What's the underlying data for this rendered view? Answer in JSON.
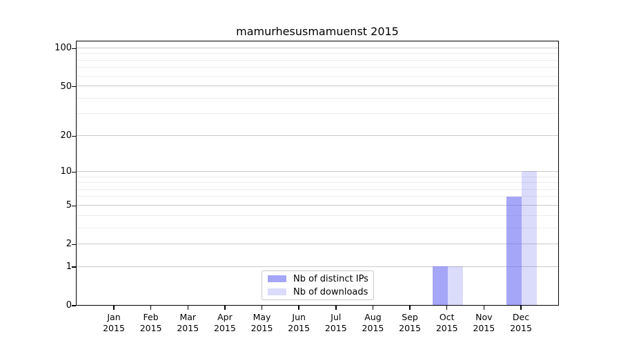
{
  "chart_data": {
    "type": "bar",
    "title": "mamurhesusmamuenst 2015",
    "categories": [
      "Jan",
      "Feb",
      "Mar",
      "Apr",
      "May",
      "Jun",
      "Jul",
      "Aug",
      "Sep",
      "Oct",
      "Nov",
      "Dec"
    ],
    "x_sublabel": "2015",
    "series": [
      {
        "name": "Nb of distinct IPs",
        "color": "rgba(92,92,242,0.55)",
        "values": [
          0,
          0,
          0,
          0,
          0,
          0,
          0,
          0,
          0,
          1,
          0,
          6
        ]
      },
      {
        "name": "Nb of downloads",
        "color": "rgba(92,92,242,0.22)",
        "values": [
          0,
          0,
          0,
          0,
          0,
          0,
          0,
          0,
          0,
          1,
          0,
          10
        ]
      }
    ],
    "y_scale": "log1p",
    "y_max": 115.4,
    "y_ticks_major": [
      0,
      1,
      2,
      5,
      10,
      20,
      50,
      100
    ],
    "y_tick_labels": [
      "0",
      "1",
      "2",
      "5",
      "10",
      "20",
      "50",
      "100"
    ],
    "y_ticks_minor": [
      3,
      4,
      6,
      7,
      8,
      9,
      30,
      40,
      60,
      70,
      80,
      90
    ],
    "grid": "on",
    "legend_position": "lower-center-inside",
    "colors": {
      "grid_major": "#c9c9c9",
      "grid_minor": "#ececec",
      "axis": "#000000",
      "background": "#ffffff"
    }
  }
}
